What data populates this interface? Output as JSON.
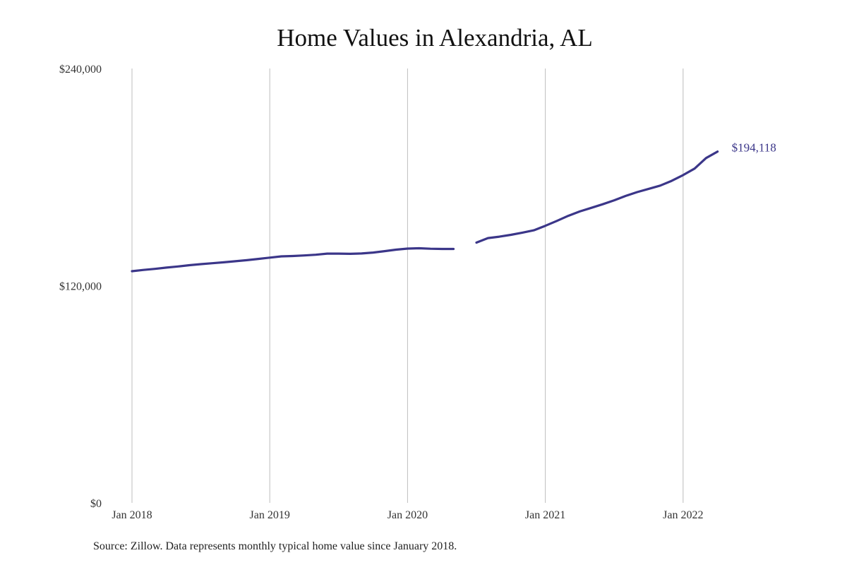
{
  "chart_data": {
    "type": "line",
    "title": "Home Values in Alexandria, AL",
    "xlabel": "",
    "ylabel": "",
    "ylim": [
      0,
      240000
    ],
    "y_ticks": [
      0,
      120000,
      240000
    ],
    "y_tick_labels": [
      "$0",
      "$120,000",
      "$240,000"
    ],
    "x_ticks": [
      "2018-01",
      "2019-01",
      "2020-01",
      "2021-01",
      "2022-01"
    ],
    "x_tick_labels": [
      "Jan 2018",
      "Jan 2019",
      "Jan 2020",
      "Jan 2021",
      "Jan 2022"
    ],
    "grid": "vertical",
    "legend": "none",
    "series": [
      {
        "color": "#3b3689",
        "end_label": "$194,118",
        "points": [
          {
            "x": "2018-01",
            "y": 128000
          },
          {
            "x": "2018-02",
            "y": 128700
          },
          {
            "x": "2018-03",
            "y": 129300
          },
          {
            "x": "2018-04",
            "y": 130000
          },
          {
            "x": "2018-05",
            "y": 130600
          },
          {
            "x": "2018-06",
            "y": 131300
          },
          {
            "x": "2018-07",
            "y": 131900
          },
          {
            "x": "2018-08",
            "y": 132400
          },
          {
            "x": "2018-09",
            "y": 132900
          },
          {
            "x": "2018-10",
            "y": 133500
          },
          {
            "x": "2018-11",
            "y": 134100
          },
          {
            "x": "2018-12",
            "y": 134800
          },
          {
            "x": "2019-01",
            "y": 135500
          },
          {
            "x": "2019-02",
            "y": 136200
          },
          {
            "x": "2019-03",
            "y": 136400
          },
          {
            "x": "2019-04",
            "y": 136700
          },
          {
            "x": "2019-05",
            "y": 137100
          },
          {
            "x": "2019-06",
            "y": 137700
          },
          {
            "x": "2019-07",
            "y": 137700
          },
          {
            "x": "2019-08",
            "y": 137600
          },
          {
            "x": "2019-09",
            "y": 137800
          },
          {
            "x": "2019-10",
            "y": 138300
          },
          {
            "x": "2019-11",
            "y": 139100
          },
          {
            "x": "2019-12",
            "y": 139900
          },
          {
            "x": "2020-01",
            "y": 140500
          },
          {
            "x": "2020-02",
            "y": 140700
          },
          {
            "x": "2020-03",
            "y": 140400
          },
          {
            "x": "2020-04",
            "y": 140300
          },
          {
            "x": "2020-05",
            "y": 140300
          },
          {
            "x": "2020-06",
            "y": null
          },
          {
            "x": "2020-07",
            "y": 143800
          },
          {
            "x": "2020-08",
            "y": 146300
          },
          {
            "x": "2020-09",
            "y": 147100
          },
          {
            "x": "2020-10",
            "y": 148100
          },
          {
            "x": "2020-11",
            "y": 149300
          },
          {
            "x": "2020-12",
            "y": 150600
          },
          {
            "x": "2021-01",
            "y": 153100
          },
          {
            "x": "2021-02",
            "y": 155800
          },
          {
            "x": "2021-03",
            "y": 158600
          },
          {
            "x": "2021-04",
            "y": 161000
          },
          {
            "x": "2021-05",
            "y": 163000
          },
          {
            "x": "2021-06",
            "y": 165000
          },
          {
            "x": "2021-07",
            "y": 167200
          },
          {
            "x": "2021-08",
            "y": 169600
          },
          {
            "x": "2021-09",
            "y": 171700
          },
          {
            "x": "2021-10",
            "y": 173500
          },
          {
            "x": "2021-11",
            "y": 175300
          },
          {
            "x": "2021-12",
            "y": 177900
          },
          {
            "x": "2022-01",
            "y": 181100
          },
          {
            "x": "2022-02",
            "y": 184700
          },
          {
            "x": "2022-03",
            "y": 190500
          },
          {
            "x": "2022-04",
            "y": 194118
          }
        ]
      }
    ]
  },
  "source_note": "Source: Zillow. Data represents monthly typical home value since January 2018."
}
